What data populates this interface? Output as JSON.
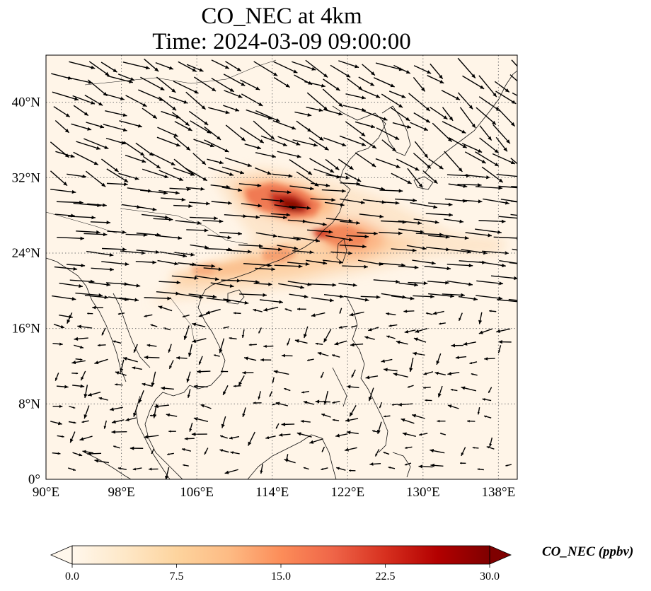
{
  "title": {
    "line1": "CO_NEC at 4km",
    "line2": "Time: 2024-03-09 09:00:00"
  },
  "map": {
    "lon_range": [
      90,
      140
    ],
    "lat_range": [
      0,
      45
    ],
    "gridlines": "dotted",
    "lon_ticks": [
      {
        "value": 90,
        "label": "90°E"
      },
      {
        "value": 98,
        "label": "98°E"
      },
      {
        "value": 106,
        "label": "106°E"
      },
      {
        "value": 114,
        "label": "114°E"
      },
      {
        "value": 122,
        "label": "122°E"
      },
      {
        "value": 130,
        "label": "130°E"
      },
      {
        "value": 138,
        "label": "138°E"
      }
    ],
    "lat_ticks": [
      {
        "value": 0,
        "label": "0°"
      },
      {
        "value": 8,
        "label": "8°N"
      },
      {
        "value": 16,
        "label": "16°N"
      },
      {
        "value": 24,
        "label": "24°N"
      },
      {
        "value": 32,
        "label": "32°N"
      },
      {
        "value": 40,
        "label": "40°N"
      }
    ],
    "field_colormap": "OrRd",
    "wind_vectors": "black arrows"
  },
  "colorbar": {
    "label": "CO_NEC (ppbv)",
    "min": 0.0,
    "max": 30.0,
    "extend": "both",
    "ticks": [
      "0.0",
      "7.5",
      "15.0",
      "22.5",
      "30.0"
    ],
    "colors": [
      "#fff7ec",
      "#fee8c8",
      "#fdd49e",
      "#fdbb84",
      "#fc8d59",
      "#ef6548",
      "#d7301f",
      "#b30000",
      "#7f0000"
    ]
  }
}
